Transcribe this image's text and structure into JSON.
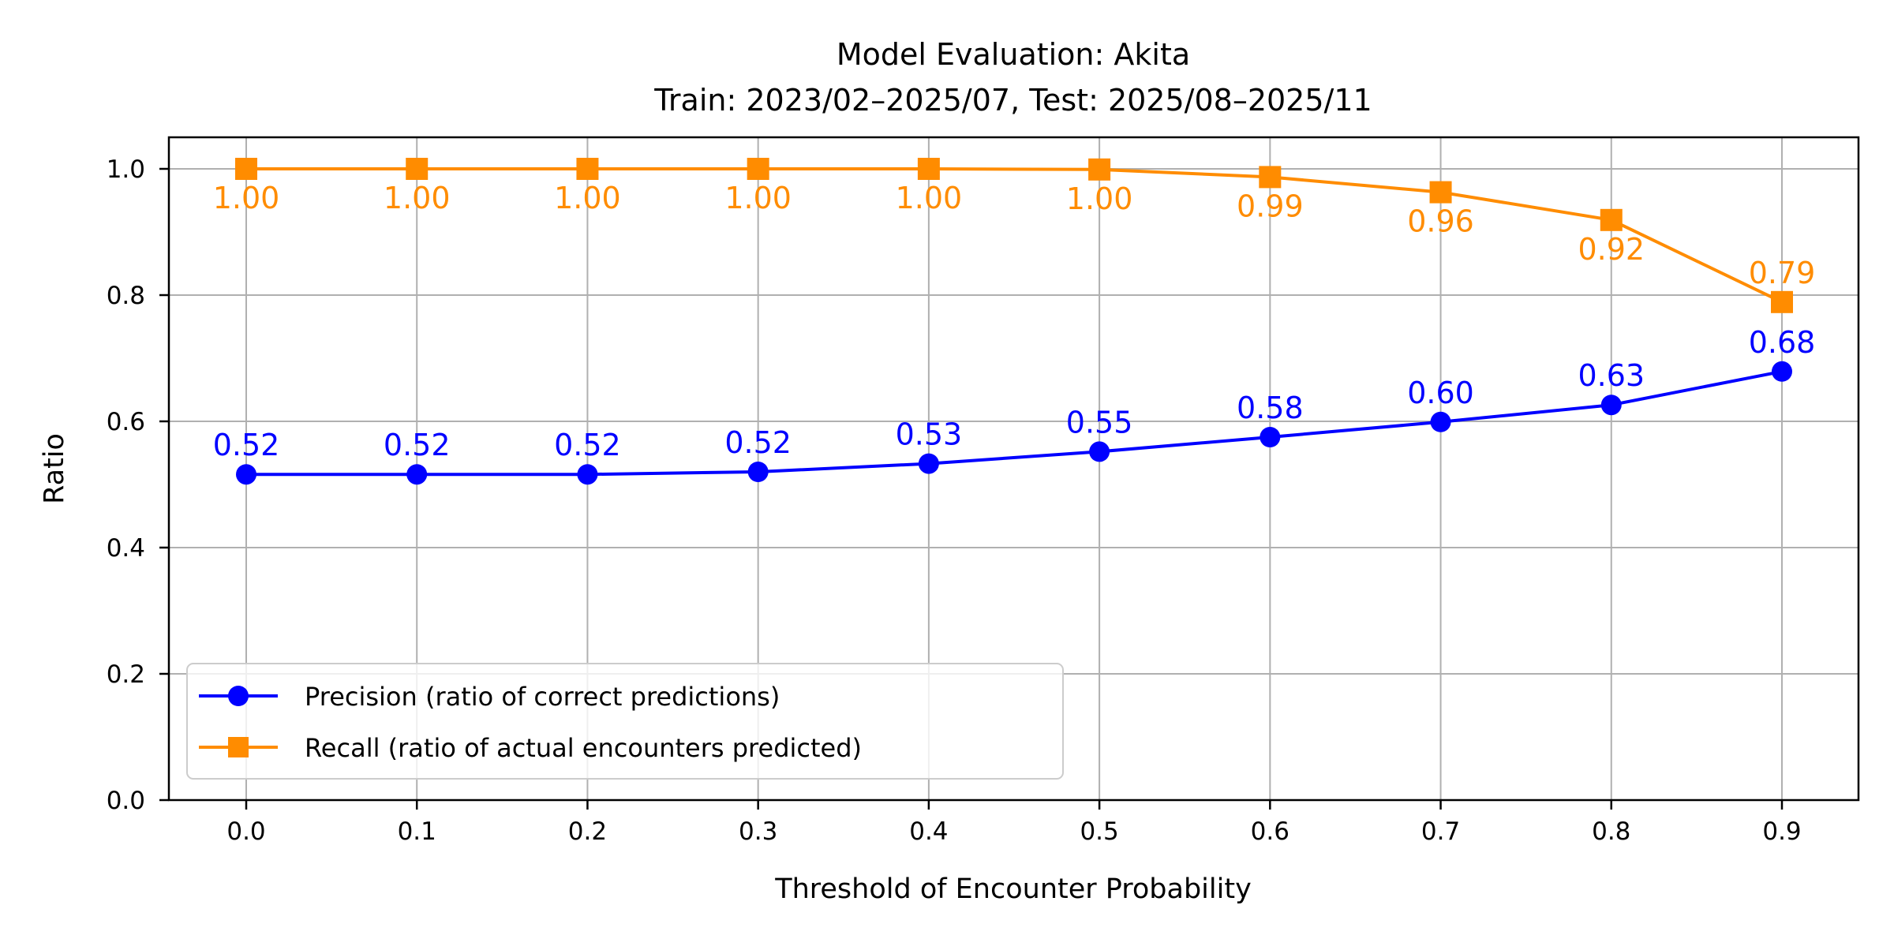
{
  "chart_data": {
    "type": "line",
    "title": "Model Evaluation: Akita",
    "subtitle": "Train: 2023/02–2025/07, Test: 2025/08–2025/11",
    "xlabel": "Threshold of Encounter Probability",
    "ylabel": "Ratio",
    "xlim": [
      -0.045,
      0.945
    ],
    "ylim": [
      0,
      1.05
    ],
    "grid": true,
    "legend_position": "lower-left",
    "x": [
      0.0,
      0.1,
      0.2,
      0.3,
      0.4,
      0.5,
      0.6,
      0.7,
      0.8,
      0.9
    ],
    "x_tick_labels": [
      "0.0",
      "0.1",
      "0.2",
      "0.3",
      "0.4",
      "0.5",
      "0.6",
      "0.7",
      "0.8",
      "0.9"
    ],
    "y_ticks": [
      0.0,
      0.2,
      0.4,
      0.6,
      0.8,
      1.0
    ],
    "y_tick_labels": [
      "0.0",
      "0.2",
      "0.4",
      "0.6",
      "0.8",
      "1.0"
    ],
    "series": [
      {
        "name": "Precision (ratio of correct predictions)",
        "color": "#0000ff",
        "marker": "circle",
        "values": [
          0.516,
          0.516,
          0.516,
          0.52,
          0.533,
          0.552,
          0.575,
          0.599,
          0.626,
          0.679
        ],
        "labels": [
          "0.52",
          "0.52",
          "0.52",
          "0.52",
          "0.53",
          "0.55",
          "0.58",
          "0.60",
          "0.63",
          "0.68"
        ]
      },
      {
        "name": "Recall (ratio of actual encounters predicted)",
        "color": "#ff8c00",
        "marker": "square",
        "values": [
          1.0,
          1.0,
          1.0,
          1.0,
          1.0,
          0.999,
          0.987,
          0.963,
          0.919,
          0.789
        ],
        "labels": [
          "1.00",
          "1.00",
          "1.00",
          "1.00",
          "1.00",
          "1.00",
          "0.99",
          "0.96",
          "0.92",
          "0.79"
        ]
      }
    ]
  }
}
